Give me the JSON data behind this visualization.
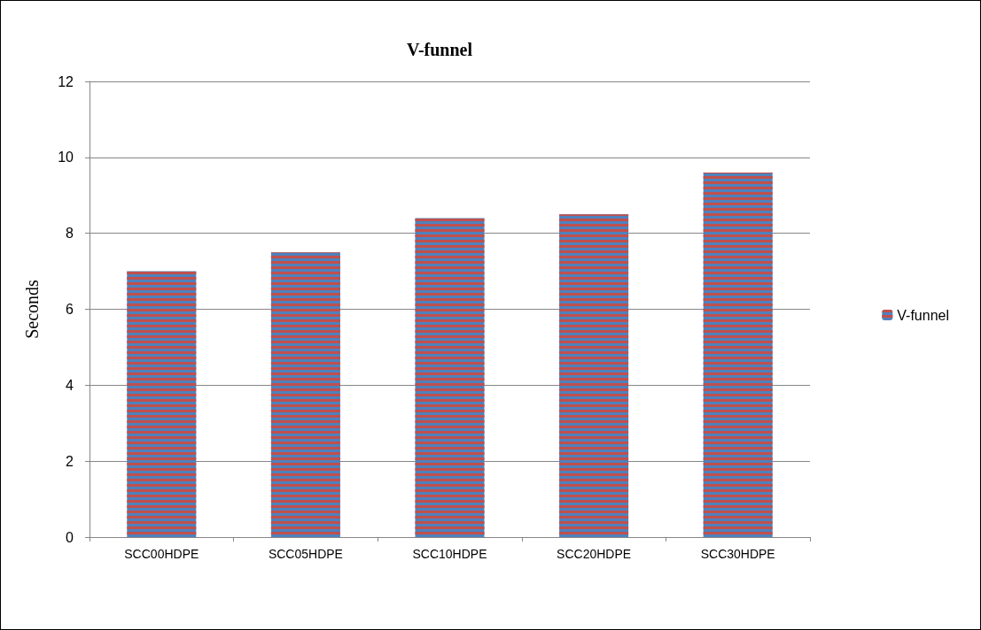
{
  "chart_data": {
    "type": "bar",
    "title": "V-funnel",
    "ylabel": "Seconds",
    "categories": [
      "SCC00HDPE",
      "SCC05HDPE",
      "SCC10HDPE",
      "SCC20HDPE",
      "SCC30HDPE"
    ],
    "series": [
      {
        "name": "V-funnel",
        "color": "#4f81bd",
        "values": [
          7.0,
          7.5,
          8.4,
          8.5,
          9.6
        ]
      }
    ],
    "ylim": [
      0,
      12
    ],
    "yticks": [
      0,
      2,
      4,
      6,
      8,
      10,
      12
    ],
    "grid": "y",
    "legend": "right"
  }
}
